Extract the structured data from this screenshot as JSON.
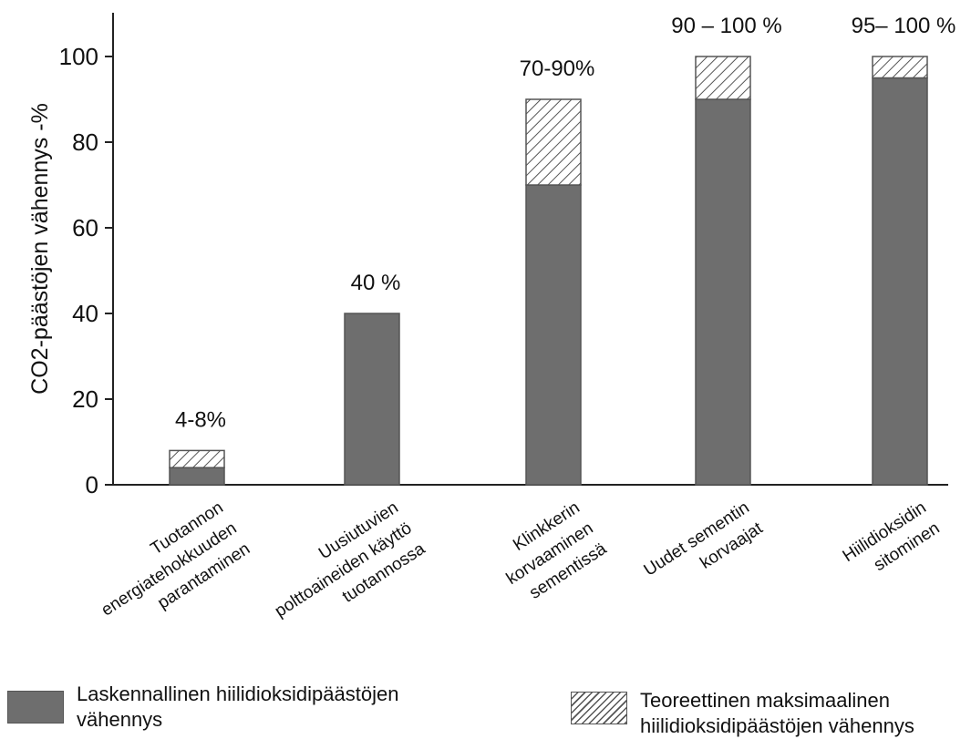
{
  "chart_data": {
    "type": "bar",
    "ylabel": "CO2-päästöjen vähennys -%",
    "ylim": [
      0,
      110
    ],
    "yticks": [
      0,
      20,
      40,
      60,
      80,
      100
    ],
    "categories": [
      [
        "Tuotannon",
        "energiatehokkuuden",
        "parantaminen"
      ],
      [
        "Uusiutuvien",
        "polttoaineiden käyttö",
        "tuotannossa"
      ],
      [
        "Klinkkerin",
        "korvaaminen",
        "sementissä"
      ],
      [
        "Uudet sementin",
        "korvaajat"
      ],
      [
        "Hiilidioksidin",
        "sitominen"
      ]
    ],
    "series": [
      {
        "name": "Laskennallinen hiilidioksidipäästöjen vähennys",
        "values": [
          4,
          40,
          70,
          90,
          95
        ]
      },
      {
        "name": "Teoreettinen maksimaalinen hiilidioksidipäästöjen vähennys",
        "values": [
          4,
          0,
          20,
          10,
          5
        ]
      }
    ],
    "data_labels": [
      "4-8%",
      "40 %",
      "70-90%",
      "90 – 100 %",
      "95– 100 %"
    ],
    "colors": {
      "solid": "#6e6e6e",
      "edge": "#555555"
    }
  },
  "legend": {
    "solid_label_line1": "Laskennallinen hiilidioksidipäästöjen",
    "solid_label_line2": "vähennys",
    "hatch_label_line1": "Teoreettinen maksimaalinen",
    "hatch_label_line2": "hiilidioksidipäästöjen vähennys"
  }
}
